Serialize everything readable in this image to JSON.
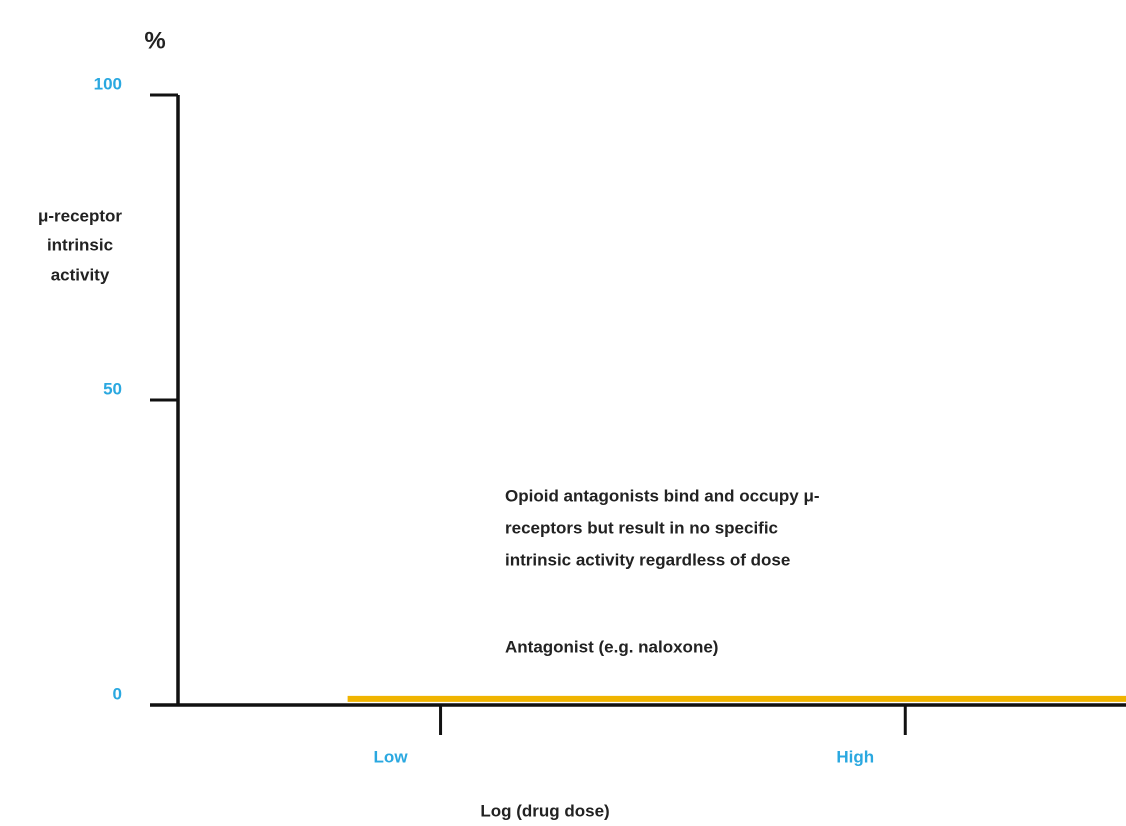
{
  "chart_data": {
    "type": "line",
    "y_unit": "%",
    "ylabel": [
      "μ-receptor",
      "intrinsic",
      "activity"
    ],
    "xlabel": "Log (drug dose)",
    "annotation": [
      "Opioid antagonists bind and occupy μ-",
      "receptors but result in no specific",
      "intrinsic activity regardless of dose"
    ],
    "xlim": [
      -0.13,
      3.95
    ],
    "xticks": [
      {
        "value": 1,
        "label": "Low"
      },
      {
        "value": 3,
        "label": "High"
      }
    ],
    "ylim": [
      0,
      100
    ],
    "yticks": [
      0,
      50,
      100
    ],
    "tick_color": "#2aa8e0",
    "series": [
      {
        "name": "Antagonist (e.g. naloxone)",
        "color": "#f0b400",
        "x": [
          0.6,
          3.95
        ],
        "values": [
          1,
          1
        ]
      }
    ]
  }
}
